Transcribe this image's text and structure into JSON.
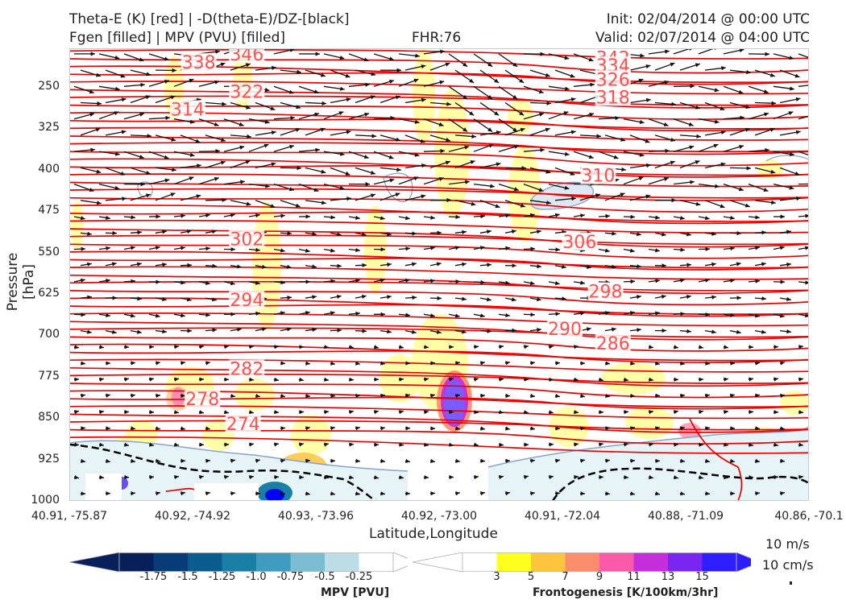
{
  "header": {
    "title_left_1": "Theta-E (K) [red] | -D(theta-E)/DZ-[black]",
    "title_left_2": "Fgen [filled] | MPV (PVU) [filled]",
    "fhr": "FHR:76",
    "init": "Init: 02/04/2014 @ 00:00 UTC",
    "valid": "Valid: 02/07/2014 @ 04:00 UTC"
  },
  "chart_data": {
    "type": "cross-section",
    "ylabel": "Pressure [hPa]",
    "xlabel": "Latitude,Longitude",
    "y_ticks": [
      "250",
      "325",
      "400",
      "475",
      "550",
      "625",
      "700",
      "775",
      "850",
      "925",
      "1000"
    ],
    "ylim": [
      1000,
      180
    ],
    "x_ticks": [
      "40.91, -75.87",
      "40.92, -74.92",
      "40.93, -73.96",
      "40.92, -73.00",
      "40.91, -72.04",
      "40.88, -71.09",
      "40.86, -70.1"
    ],
    "theta_e_labels": [
      {
        "value": "346",
        "x": 0.24,
        "p": 190
      },
      {
        "value": "338",
        "x": 0.175,
        "p": 205
      },
      {
        "value": "342",
        "x": 0.735,
        "p": 197
      },
      {
        "value": "334",
        "x": 0.735,
        "p": 211
      },
      {
        "value": "326",
        "x": 0.735,
        "p": 236
      },
      {
        "value": "322",
        "x": 0.24,
        "p": 258
      },
      {
        "value": "318",
        "x": 0.735,
        "p": 268
      },
      {
        "value": "314",
        "x": 0.16,
        "p": 290
      },
      {
        "value": "310",
        "x": 0.715,
        "p": 410
      },
      {
        "value": "306",
        "x": 0.69,
        "p": 530
      },
      {
        "value": "302",
        "x": 0.24,
        "p": 525
      },
      {
        "value": "298",
        "x": 0.725,
        "p": 620
      },
      {
        "value": "294",
        "x": 0.24,
        "p": 635
      },
      {
        "value": "290",
        "x": 0.67,
        "p": 688
      },
      {
        "value": "286",
        "x": 0.735,
        "p": 714
      },
      {
        "value": "282",
        "x": 0.24,
        "p": 760
      },
      {
        "value": "278",
        "x": 0.18,
        "p": 815
      },
      {
        "value": "274",
        "x": 0.235,
        "p": 860
      }
    ],
    "mpv_colorbar": {
      "label": "MPV [PVU]",
      "ticks": [
        "-1.75",
        "-1.5",
        "-1.25",
        "-1.0",
        "-0.75",
        "-0.5",
        "-0.25"
      ],
      "colors": [
        "#08205a",
        "#083c78",
        "#0b5c8e",
        "#1a7fa6",
        "#3d9cc0",
        "#7dbdd4",
        "#bcdce6",
        "#ffffff"
      ]
    },
    "fgen_colorbar": {
      "label": "Frontogenesis [K/100km/3hr]",
      "ticks": [
        "3",
        "5",
        "7",
        "9",
        "11",
        "13",
        "15"
      ],
      "colors": [
        "#ffffff",
        "#ffff1e",
        "#fdc43e",
        "#fb8d6d",
        "#fa5aa8",
        "#c42edb",
        "#7a26f2",
        "#2e1dff"
      ]
    },
    "vector_ref": {
      "wind": "10 m/s",
      "vertical": "10 cm/s"
    }
  }
}
